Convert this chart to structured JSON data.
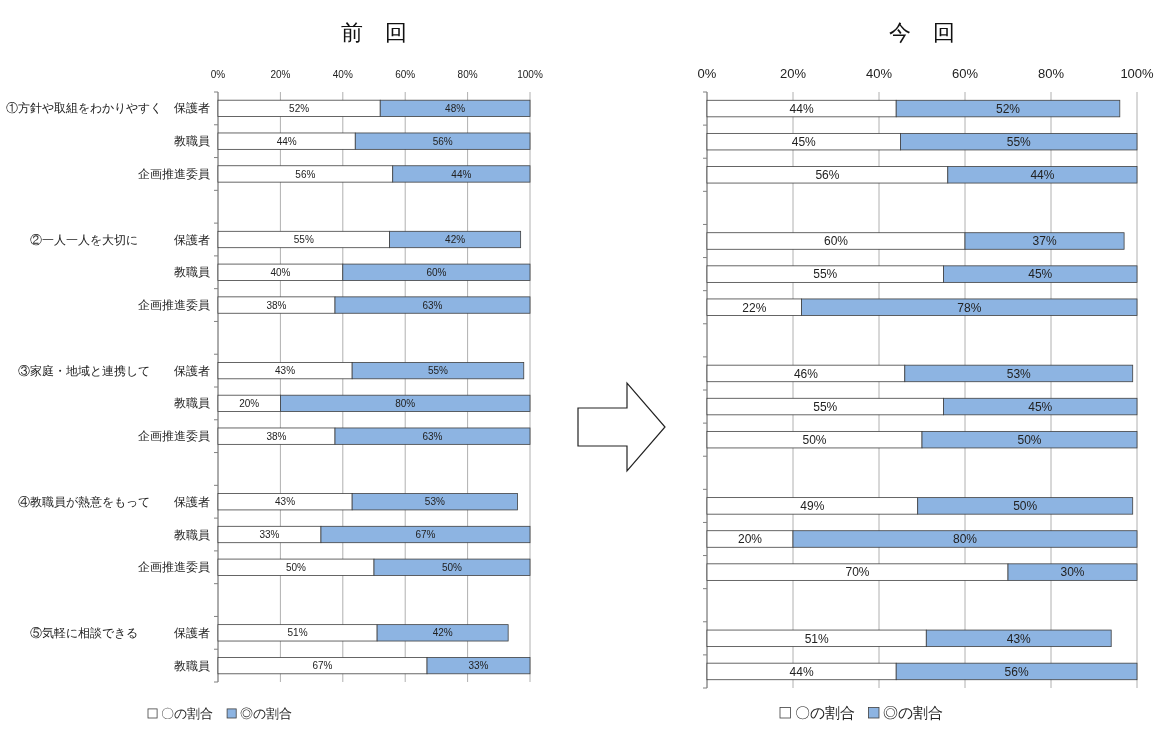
{
  "chart_data": [
    {
      "type": "bar",
      "orientation": "horizontal",
      "stacked": true,
      "title": "前　回",
      "categories": [
        "①方針や取組をわかりやすく　保護者",
        "教職員",
        "企画推進委員",
        null,
        "②一人一人を大切に　　　保護者",
        "教職員",
        "企画推進委員",
        null,
        "③家庭・地域と連携して　　保護者",
        "教職員",
        "企画推進委員",
        null,
        "④教職員が熱意をもって　　保護者",
        "教職員",
        "企画推進委員",
        null,
        "⑤気軽に相談できる　　　保護者",
        "教職員"
      ],
      "series": [
        {
          "name": "〇の割合",
          "color": "#ffffff",
          "values": [
            52,
            44,
            56,
            null,
            55,
            40,
            37.5,
            null,
            43,
            20,
            37.5,
            null,
            43,
            33,
            50,
            null,
            51,
            67
          ],
          "value_labels": [
            "52%",
            "44%",
            "56%",
            null,
            "55%",
            "40%",
            "38%",
            null,
            "43%",
            "20%",
            "38%",
            null,
            "43%",
            "33%",
            "50%",
            null,
            "51%",
            "67%"
          ]
        },
        {
          "name": "◎の割合",
          "color": "#8db4e2",
          "values": [
            48,
            56,
            44,
            null,
            42,
            60,
            62.5,
            null,
            55,
            80,
            62.5,
            null,
            53,
            67,
            50,
            null,
            42,
            33
          ],
          "value_labels": [
            "48%",
            "56%",
            "44%",
            null,
            "42%",
            "60%",
            "63%",
            null,
            "55%",
            "80%",
            "63%",
            null,
            "53%",
            "67%",
            "50%",
            null,
            "42%",
            "33%"
          ]
        }
      ],
      "xlim": [
        0,
        100
      ],
      "xticks": [
        {
          "value": 0,
          "label": "0%"
        },
        {
          "value": 20,
          "label": "20%"
        },
        {
          "value": 40,
          "label": "40%"
        },
        {
          "value": 60,
          "label": "60%"
        },
        {
          "value": 80,
          "label": "80%"
        },
        {
          "value": 100,
          "label": "100%"
        }
      ],
      "grid": "x",
      "legend": "bottom"
    },
    {
      "type": "bar",
      "orientation": "horizontal",
      "stacked": true,
      "title": "今　回",
      "categories": [
        null,
        null,
        null,
        null,
        null,
        null,
        null,
        null,
        null,
        null,
        null,
        null,
        null,
        null,
        null,
        null,
        null,
        null
      ],
      "series": [
        {
          "name": "〇の割合",
          "color": "#ffffff",
          "values": [
            44,
            45,
            56,
            null,
            60,
            55,
            22,
            null,
            46,
            55,
            50,
            null,
            49,
            20,
            70,
            null,
            51,
            44
          ],
          "value_labels": [
            "44%",
            "45%",
            "56%",
            null,
            "60%",
            "55%",
            "22%",
            null,
            "46%",
            "55%",
            "50%",
            null,
            "49%",
            "20%",
            "70%",
            null,
            "51%",
            "44%"
          ]
        },
        {
          "name": "◎の割合",
          "color": "#8db4e2",
          "values": [
            52,
            55,
            44,
            null,
            37,
            45,
            78,
            null,
            53,
            45,
            50,
            null,
            50,
            80,
            30,
            null,
            43,
            56
          ],
          "value_labels": [
            "52%",
            "55%",
            "44%",
            null,
            "37%",
            "45%",
            "78%",
            null,
            "53%",
            "45%",
            "50%",
            null,
            "50%",
            "80%",
            "30%",
            null,
            "43%",
            "56%"
          ]
        }
      ],
      "xlim": [
        0,
        100
      ],
      "xticks": [
        {
          "value": 0,
          "label": "0%"
        },
        {
          "value": 20,
          "label": "20%"
        },
        {
          "value": 40,
          "label": "40%"
        },
        {
          "value": 60,
          "label": "60%"
        },
        {
          "value": 80,
          "label": "80%"
        },
        {
          "value": 100,
          "label": "100%"
        }
      ],
      "grid": "x",
      "legend": "bottom"
    }
  ]
}
